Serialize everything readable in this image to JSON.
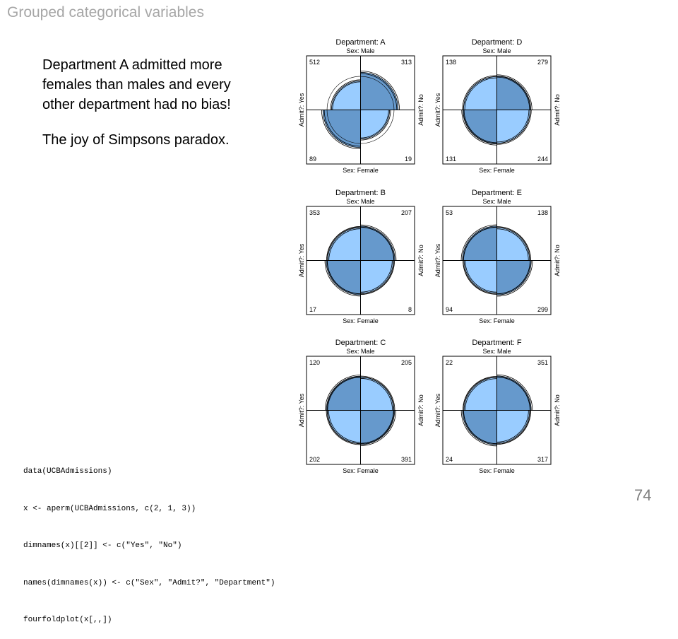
{
  "slide": {
    "title": "Grouped categorical variables",
    "body": [
      "Department A admitted more females than males and every other department had no bias!",
      "The joy of Simpsons paradox."
    ],
    "code_lines": [
      "data(UCBAdmissions)",
      "x <- aperm(UCBAdmissions, c(2, 1, 3))",
      "dimnames(x)[[2]] <- c(\"Yes\", \"No\")",
      "names(dimnames(x)) <- c(\"Sex\", \"Admit?\", \"Department\")",
      "fourfoldplot(x[,,])"
    ],
    "page_number": "74"
  },
  "chart_data": {
    "type": "fourfold",
    "row_variable": "Sex",
    "column_variable": "Admit?",
    "stratum_variable": "Department",
    "labels": {
      "top": "Sex: Male",
      "bottom": "Sex: Female",
      "left": "Admit?: Yes",
      "right": "Admit?: No"
    },
    "colors": {
      "light": "#99ccff",
      "dark": "#6699cc",
      "outline": "#000000"
    },
    "panels": [
      {
        "title": "Department: A",
        "male_yes": 512,
        "male_no": 313,
        "female_yes": 89,
        "female_no": 19
      },
      {
        "title": "Department: B",
        "male_yes": 353,
        "male_no": 207,
        "female_yes": 17,
        "female_no": 8
      },
      {
        "title": "Department: C",
        "male_yes": 120,
        "male_no": 205,
        "female_yes": 202,
        "female_no": 391
      },
      {
        "title": "Department: D",
        "male_yes": 138,
        "male_no": 279,
        "female_yes": 131,
        "female_no": 244
      },
      {
        "title": "Department: E",
        "male_yes": 53,
        "male_no": 138,
        "female_yes": 94,
        "female_no": 299
      },
      {
        "title": "Department: F",
        "male_yes": 22,
        "male_no": 351,
        "female_yes": 24,
        "female_no": 317
      }
    ]
  }
}
